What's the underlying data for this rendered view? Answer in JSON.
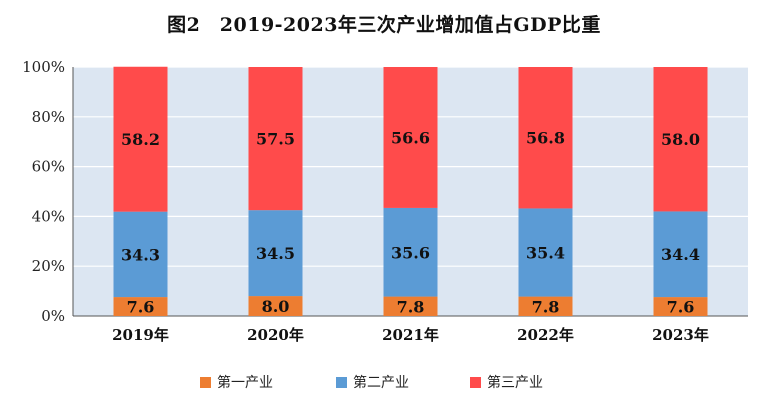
{
  "chart_data": {
    "type": "bar",
    "stacked": true,
    "title": "图2　2019-2023年三次产业增加值占GDP比重",
    "categories": [
      "2019年",
      "2020年",
      "2021年",
      "2022年",
      "2023年"
    ],
    "ylim": [
      0,
      100
    ],
    "yticks": [
      "0%",
      "20%",
      "40%",
      "60%",
      "80%",
      "100%"
    ],
    "grid": true,
    "legend_position": "bottom",
    "series": [
      {
        "name": "第一产业",
        "color": "#ED7D31",
        "values": [
          7.6,
          8.0,
          7.8,
          7.8,
          7.6
        ],
        "labels": [
          "7.6",
          "8.0",
          "7.8",
          "7.8",
          "7.6"
        ]
      },
      {
        "name": "第二产业",
        "color": "#5B9BD5",
        "values": [
          34.3,
          34.5,
          35.6,
          35.4,
          34.4
        ],
        "labels": [
          "34.3",
          "34.5",
          "35.6",
          "35.4",
          "34.4"
        ]
      },
      {
        "name": "第三产业",
        "color": "#FF4B4B",
        "values": [
          58.2,
          57.5,
          56.6,
          56.8,
          58.0
        ],
        "labels": [
          "58.2",
          "57.5",
          "56.6",
          "56.8",
          "58.0"
        ]
      }
    ],
    "plot_background": "#DCE6F2"
  }
}
